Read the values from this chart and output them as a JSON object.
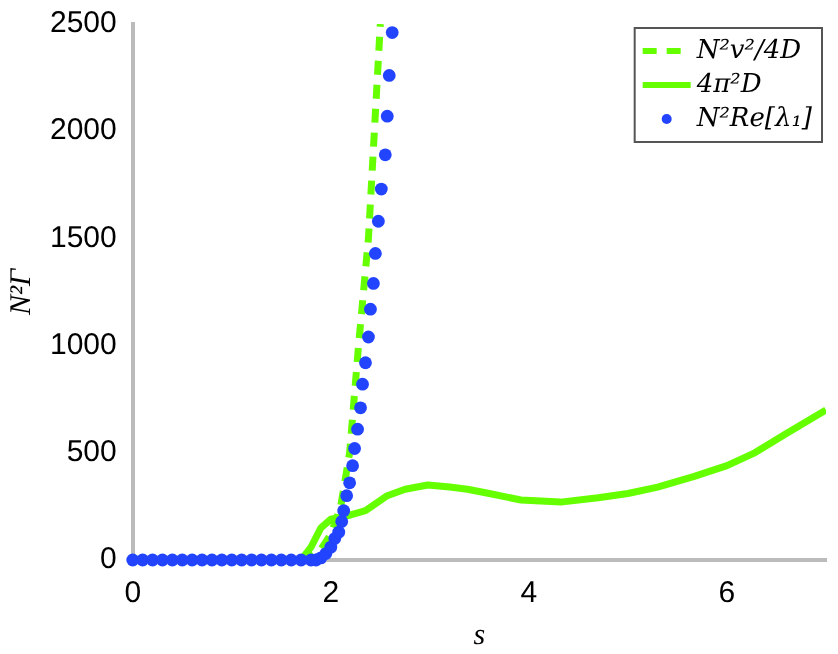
{
  "chart_data": {
    "type": "line",
    "xlabel": "s",
    "ylabel": "N²Γ",
    "xlim": [
      0,
      7
    ],
    "ylim": [
      0,
      2500
    ],
    "xticks": [
      0,
      2,
      4,
      6
    ],
    "yticks": [
      0,
      500,
      1000,
      1500,
      2000,
      2500
    ],
    "grid": false,
    "legend": "top right",
    "series": [
      {
        "name": "N²v²/4D",
        "type": "line",
        "line_style": "dashed",
        "marker": "none",
        "color": "#66ff00",
        "x": [
          0,
          1.7,
          1.8,
          1.9,
          2.0,
          2.1,
          2.19,
          2.28,
          2.38,
          2.44,
          2.5
        ],
        "values": [
          0,
          0,
          20,
          50,
          120,
          250,
          500,
          1000,
          1500,
          2000,
          2500
        ]
      },
      {
        "name": "4π²D",
        "type": "line",
        "line_style": "solid",
        "marker": "none",
        "color": "#66ff00",
        "x": [
          0,
          1.7,
          1.8,
          1.9,
          2.0,
          2.1,
          2.2,
          2.35,
          2.57,
          2.75,
          2.98,
          3.2,
          3.38,
          3.6,
          3.92,
          4.32,
          4.7,
          5.0,
          5.3,
          5.67,
          6.0,
          6.28,
          6.6,
          7.0
        ],
        "values": [
          0,
          0,
          60,
          150,
          190,
          200,
          210,
          230,
          300,
          330,
          350,
          340,
          330,
          310,
          280,
          270,
          290,
          310,
          340,
          390,
          440,
          500,
          590,
          700
        ]
      },
      {
        "name": "N²Re[λ₁]",
        "type": "scatter",
        "marker": "circle",
        "color": "#2244ff",
        "x": [
          0,
          0.1,
          0.2,
          0.3,
          0.4,
          0.5,
          0.6,
          0.7,
          0.8,
          0.9,
          1.0,
          1.1,
          1.2,
          1.3,
          1.4,
          1.5,
          1.6,
          1.7,
          1.8,
          1.85,
          1.9,
          1.95,
          2.0,
          2.04,
          2.08,
          2.11,
          2.13,
          2.16,
          2.19,
          2.22,
          2.24,
          2.27,
          2.3,
          2.32,
          2.35,
          2.38,
          2.4,
          2.43,
          2.45,
          2.48,
          2.51,
          2.55,
          2.57,
          2.59,
          2.62
        ],
        "values": [
          0,
          0,
          0,
          0,
          0,
          0,
          0,
          0,
          0,
          0,
          0,
          0,
          0,
          0,
          0,
          0,
          0,
          0,
          0,
          0,
          10,
          30,
          60,
          100,
          130,
          180,
          230,
          300,
          360,
          440,
          520,
          610,
          710,
          820,
          920,
          1040,
          1170,
          1290,
          1430,
          1580,
          1730,
          1890,
          2070,
          2260,
          2460
        ]
      }
    ]
  }
}
